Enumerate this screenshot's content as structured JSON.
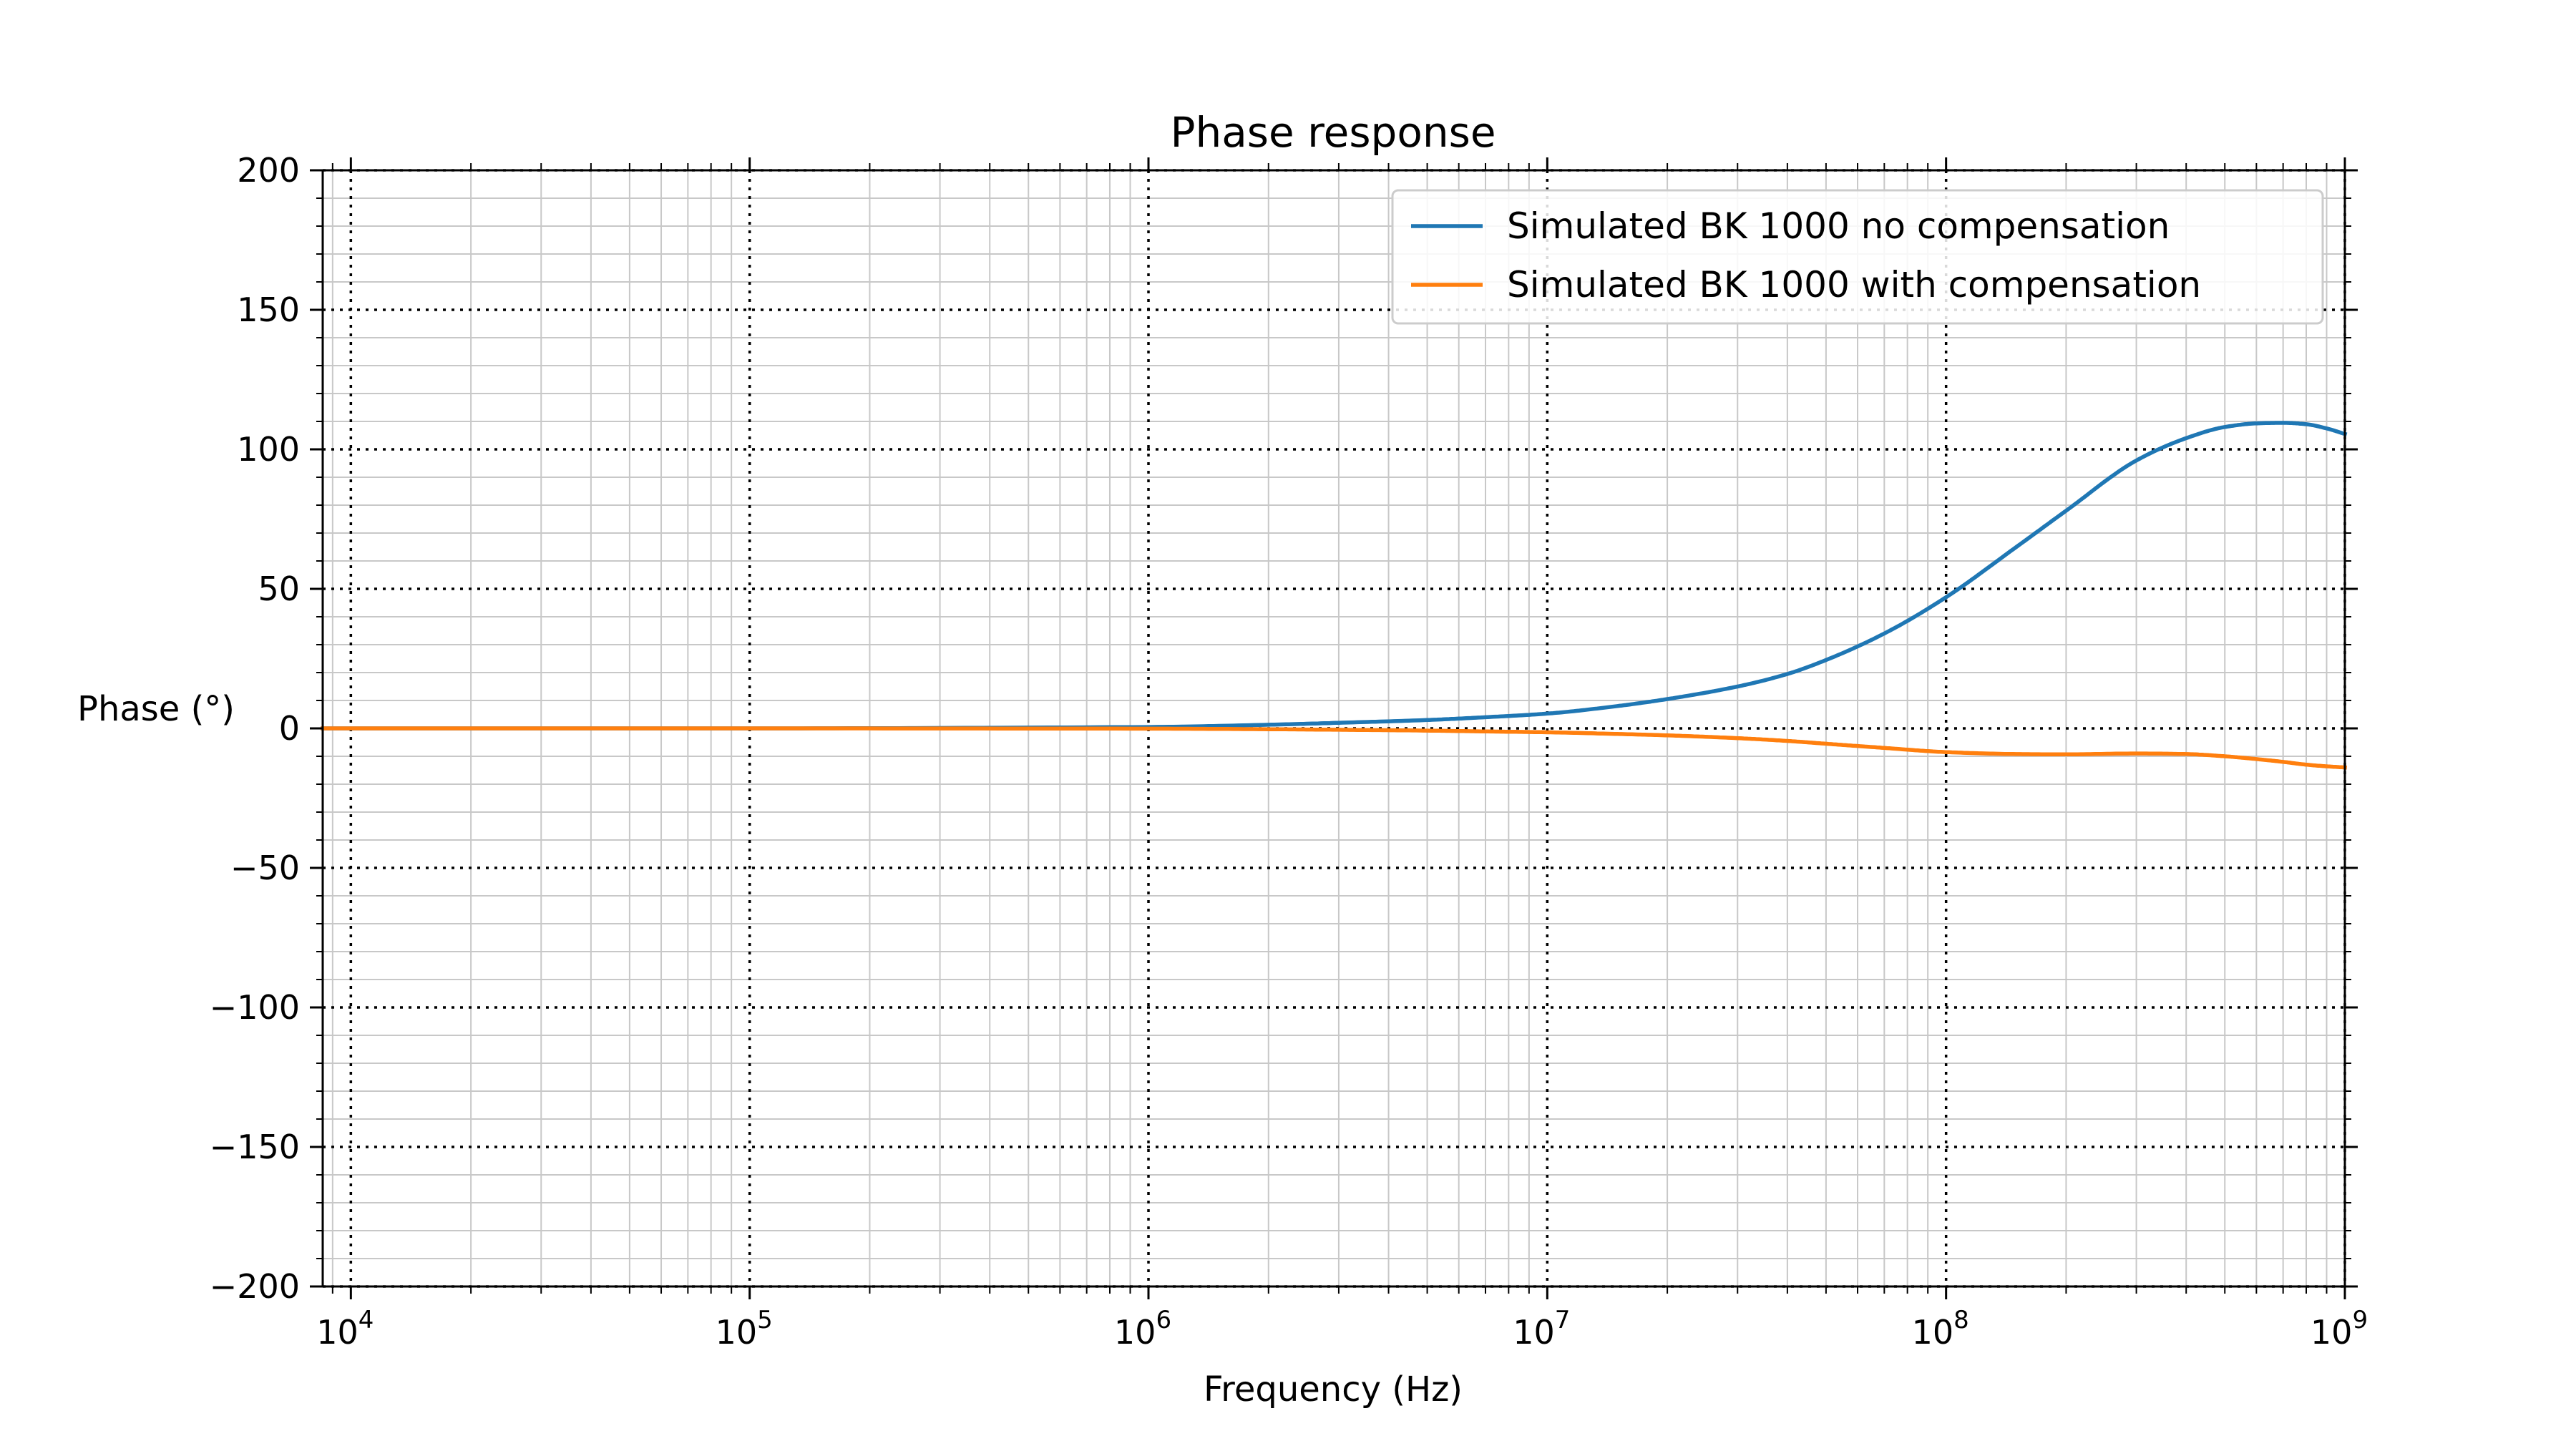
{
  "chart_data": {
    "type": "line",
    "title": "Phase response",
    "xlabel": "Frequency (Hz)",
    "ylabel": "Phase (°)",
    "xscale": "log",
    "xlim": [
      8500,
      1000000000
    ],
    "ylim": [
      -200,
      200
    ],
    "x_ticks": [
      {
        "value": 10000,
        "base": "10",
        "exp": "4"
      },
      {
        "value": 100000,
        "base": "10",
        "exp": "5"
      },
      {
        "value": 1000000,
        "base": "10",
        "exp": "6"
      },
      {
        "value": 10000000,
        "base": "10",
        "exp": "7"
      },
      {
        "value": 100000000,
        "base": "10",
        "exp": "8"
      },
      {
        "value": 1000000000,
        "base": "10",
        "exp": "9"
      }
    ],
    "y_ticks": [
      {
        "value": 200,
        "label": "200"
      },
      {
        "value": 150,
        "label": "150"
      },
      {
        "value": 100,
        "label": "100"
      },
      {
        "value": 50,
        "label": "50"
      },
      {
        "value": 0,
        "label": "0"
      },
      {
        "value": -50,
        "label": "−50"
      },
      {
        "value": -100,
        "label": "−100"
      },
      {
        "value": -150,
        "label": "−150"
      },
      {
        "value": -200,
        "label": "−200"
      }
    ],
    "grid": {
      "major": "dotted",
      "minor": "solid"
    },
    "legend_position": "top-right",
    "series": [
      {
        "name": "Simulated BK 1000 no compensation",
        "color": "#1f77b4",
        "x": [
          8500,
          10000,
          100000,
          1000000,
          2000000,
          3000000,
          5000000,
          7000000,
          10000000,
          15000000,
          20000000,
          30000000,
          40000000,
          50000000,
          70000000,
          100000000,
          150000000,
          200000000,
          300000000,
          400000000,
          500000000,
          600000000,
          700000000,
          800000000,
          900000000,
          1000000000
        ],
        "y": [
          0,
          0,
          0,
          0.5,
          1.3,
          2,
          3,
          4,
          5.3,
          8,
          10.5,
          15,
          19.5,
          24.5,
          34,
          47,
          65,
          78,
          96,
          104,
          108,
          109.3,
          109.5,
          109,
          107.5,
          105.5
        ]
      },
      {
        "name": "Simulated BK 1000 with compensation",
        "color": "#ff7f0e",
        "x": [
          8500,
          10000,
          100000,
          1000000,
          2000000,
          3000000,
          5000000,
          7000000,
          10000000,
          15000000,
          20000000,
          30000000,
          40000000,
          50000000,
          70000000,
          100000000,
          150000000,
          200000000,
          300000000,
          400000000,
          500000000,
          600000000,
          700000000,
          800000000,
          900000000,
          1000000000
        ],
        "y": [
          0,
          0,
          0,
          -0.1,
          -0.3,
          -0.5,
          -0.8,
          -1.1,
          -1.4,
          -2,
          -2.5,
          -3.5,
          -4.5,
          -5.5,
          -7,
          -8.5,
          -9.2,
          -9.3,
          -9.0,
          -9.2,
          -10,
          -11,
          -12,
          -13,
          -13.6,
          -14
        ]
      }
    ]
  }
}
